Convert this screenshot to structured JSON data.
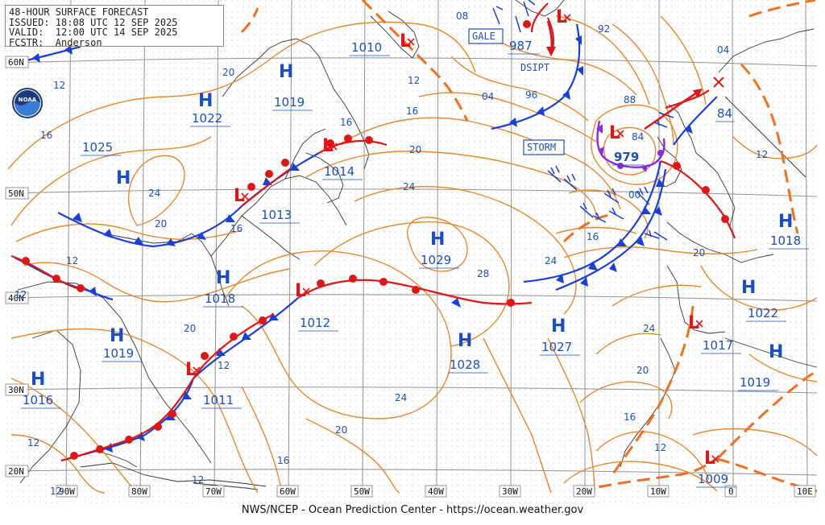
{
  "header": {
    "title": "48-HOUR SURFACE FORECAST",
    "issued": "ISSUED: 18:08 UTC 12 SEP 2025",
    "valid": "VALID:  12:00 UTC 14 SEP 2025",
    "forecaster": "FCSTR:  Anderson"
  },
  "footer": "NWS/NCEP - Ocean Prediction Center - https://ocean.weather.gov",
  "logo_text": "NOAA",
  "latitude_labels": [
    "60N",
    "50N",
    "40N",
    "30N",
    "20N"
  ],
  "longitude_labels": [
    "90W",
    "80W",
    "70W",
    "60W",
    "50W",
    "40W",
    "30W",
    "20W",
    "10W",
    "0",
    "10E"
  ],
  "highs": [
    {
      "label": "H",
      "value": "1022"
    },
    {
      "label": "H",
      "value": "1019"
    },
    {
      "label": "H",
      "value": "1025"
    },
    {
      "label": "H",
      "value": ""
    },
    {
      "label": "H",
      "value": "1018"
    },
    {
      "label": "H",
      "value": "1019"
    },
    {
      "label": "H",
      "value": "1016"
    },
    {
      "label": "H",
      "value": "1029"
    },
    {
      "label": "H",
      "value": "1028"
    },
    {
      "label": "H",
      "value": "1027"
    },
    {
      "label": "H",
      "value": "1018"
    },
    {
      "label": "H",
      "value": "1022"
    },
    {
      "label": "H",
      "value": "1019"
    }
  ],
  "lows": [
    {
      "label": "L",
      "value": "1010"
    },
    {
      "label": "L",
      "value": "987"
    },
    {
      "label": "L",
      "value": "979"
    },
    {
      "label": "L",
      "value": "1014"
    },
    {
      "label": "L",
      "value": "1013"
    },
    {
      "label": "L",
      "value": "1012"
    },
    {
      "label": "L",
      "value": "1011"
    },
    {
      "label": "L",
      "value": "1017"
    },
    {
      "label": "L",
      "value": "1009"
    },
    {
      "label": "L",
      "value": "84"
    }
  ],
  "warnings": [
    {
      "text": "GALE"
    },
    {
      "text": "STORM"
    }
  ],
  "annotations": [
    {
      "text": "DSIPT"
    }
  ],
  "isobar_labels": [
    "08",
    "12",
    "16",
    "20",
    "24",
    "28",
    "04",
    "96",
    "92",
    "88",
    "84",
    "00",
    "16",
    "20",
    "24",
    "16",
    "20",
    "12",
    "16",
    "12",
    "24",
    "20",
    "16",
    "20",
    "12",
    "16",
    "12",
    "12",
    "04",
    "12",
    "20",
    "24",
    "12"
  ],
  "colors": {
    "isobar": "#e8862a",
    "cold_front": "#1b3fd9",
    "warm_front": "#e01515",
    "occluded_front": "#8a2be2",
    "trough": "#f07020",
    "coast": "#333333",
    "grid": "#777777",
    "text": "#1b4fbf"
  }
}
